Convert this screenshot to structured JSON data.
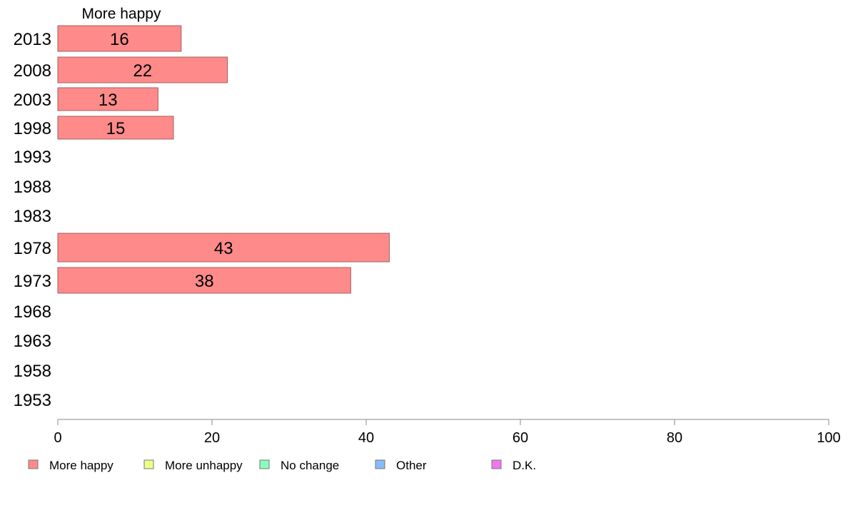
{
  "chart_data": {
    "type": "bar",
    "orientation": "horizontal",
    "title": "",
    "xlabel": "",
    "ylabel": "",
    "series_header": "More happy",
    "categories": [
      "2013",
      "2008",
      "2003",
      "1998",
      "1993",
      "1988",
      "1983",
      "1978",
      "1973",
      "1968",
      "1963",
      "1958",
      "1953"
    ],
    "series": [
      {
        "name": "More happy",
        "color": "#ff8a8a",
        "values": [
          16,
          22,
          13,
          15,
          null,
          null,
          null,
          43,
          38,
          null,
          null,
          null,
          null
        ]
      }
    ],
    "xlim": [
      0,
      100
    ],
    "xticks": [
      0,
      20,
      40,
      60,
      80,
      100
    ],
    "grid": false,
    "legend_position": "bottom",
    "legend": [
      {
        "label": "More happy",
        "color": "#ff8a8a"
      },
      {
        "label": "More unhappy",
        "color": "#eeff88"
      },
      {
        "label": "No change",
        "color": "#88ffbb"
      },
      {
        "label": "Other",
        "color": "#88bbff"
      },
      {
        "label": "D.K.",
        "color": "#ee77ee"
      }
    ]
  }
}
